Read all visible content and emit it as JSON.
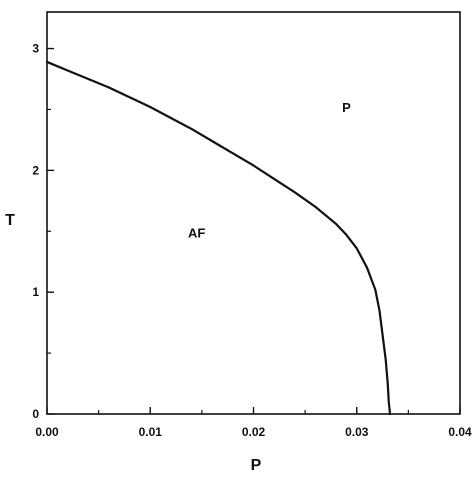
{
  "chart_data": {
    "type": "line",
    "title": "",
    "xlabel": "P",
    "ylabel": "T",
    "xlim": [
      0.0,
      0.04
    ],
    "ylim": [
      0,
      3.3
    ],
    "x_ticks": [
      0.0,
      0.01,
      0.02,
      0.03,
      0.04
    ],
    "x_tick_labels": [
      "0.00",
      "0.01",
      "0.02",
      "0.03",
      "0.04"
    ],
    "y_ticks": [
      0,
      1,
      2,
      3
    ],
    "y_tick_labels": [
      "0",
      "1",
      "2",
      "3"
    ],
    "grid": false,
    "legend": "none",
    "annotations": [
      {
        "text": "P",
        "x": 0.029,
        "y": 2.48
      },
      {
        "text": "AF",
        "x": 0.0145,
        "y": 1.45
      }
    ],
    "series": [
      {
        "x": [
          0.0,
          0.002,
          0.004,
          0.006,
          0.008,
          0.01,
          0.012,
          0.014,
          0.016,
          0.018,
          0.02,
          0.022,
          0.024,
          0.026,
          0.028,
          0.029,
          0.03,
          0.031,
          0.0318,
          0.0322,
          0.0325,
          0.0328,
          0.033,
          0.0331,
          0.0332,
          0.0332
        ],
        "y": [
          2.89,
          2.82,
          2.75,
          2.68,
          2.6,
          2.52,
          2.43,
          2.34,
          2.24,
          2.14,
          2.04,
          1.93,
          1.82,
          1.7,
          1.56,
          1.47,
          1.36,
          1.2,
          1.02,
          0.85,
          0.65,
          0.45,
          0.25,
          0.1,
          0.02,
          0.0
        ]
      }
    ],
    "colors": {
      "line": "#111111",
      "axis": "#111111",
      "background": "#ffffff"
    }
  }
}
